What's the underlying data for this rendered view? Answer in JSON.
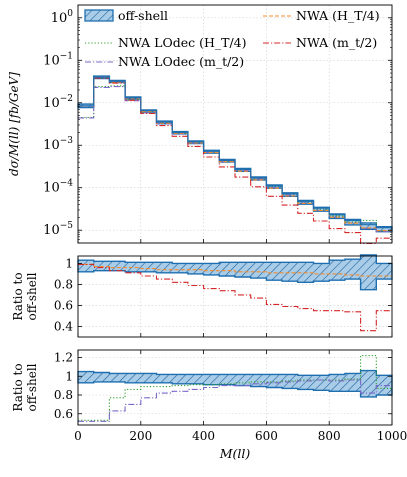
{
  "chart_data": [
    {
      "type": "step",
      "panel": "main",
      "ylabel": "dσ/M(ll) [fb/GeV]",
      "yscale": "log",
      "ylim": [
        5e-06,
        2
      ],
      "xlim": [
        0,
        1000
      ],
      "grid": true,
      "yticklabels": [
        "10^0",
        "10^-1",
        "10^-2",
        "10^-3",
        "10^-4",
        "10^-5"
      ],
      "legend": {
        "placement": "top",
        "entries": [
          {
            "key": "offshell",
            "label": "off-shell",
            "style": "hatched band"
          },
          {
            "key": "lodec_ht",
            "label": "NWA LOdec (H_T/4)",
            "style": "dotted"
          },
          {
            "key": "lodec_mt",
            "label": "NWA LOdec (m_t/2)",
            "style": "dash-dot"
          },
          {
            "key": "nwa_ht",
            "label": "NWA (H_T/4)",
            "style": "dashed"
          },
          {
            "key": "nwa_mt",
            "label": "NWA (m_t/2)",
            "style": "dash-dot"
          }
        ]
      },
      "bin_edges": [
        0,
        50,
        100,
        150,
        200,
        250,
        300,
        350,
        400,
        450,
        500,
        550,
        600,
        650,
        700,
        750,
        800,
        850,
        900,
        950,
        1000
      ],
      "series": [
        {
          "key": "offshell",
          "name": "off-shell",
          "color": "#1f6fb0",
          "values": [
            0.0085,
            0.04,
            0.032,
            0.013,
            0.0065,
            0.0035,
            0.002,
            0.0012,
            0.00072,
            0.00044,
            0.00027,
            0.00017,
            0.00011,
            7.2e-05,
            4.8e-05,
            3.3e-05,
            2.3e-05,
            1.7e-05,
            1.35e-05,
            1.15e-05
          ],
          "band_low": [
            0.0077,
            0.037,
            0.03,
            0.0122,
            0.006,
            0.0032,
            0.00185,
            0.0011,
            0.00065,
            0.0004,
            0.000243,
            0.000152,
            9.75e-05,
            6.3e-05,
            4.1e-05,
            2.8e-05,
            1.9e-05,
            1.33e-05,
            1.05e-05,
            9.2e-06
          ],
          "band_high": [
            0.0093,
            0.0425,
            0.0335,
            0.0137,
            0.0068,
            0.0037,
            0.0021,
            0.00126,
            0.00076,
            0.000462,
            0.000284,
            0.000179,
            0.000116,
            7.6e-05,
            5.04e-05,
            3.47e-05,
            2.42e-05,
            1.79e-05,
            1.49e-05,
            1.21e-05
          ]
        },
        {
          "key": "lodec_ht",
          "name": "NWA LOdec (H_T/4)",
          "color": "#2ca02c",
          "values": [
            0.0045,
            0.024,
            0.025,
            0.0115,
            0.006,
            0.0033,
            0.0019,
            0.00114,
            0.00068,
            0.00042,
            0.00026,
            0.000162,
            0.000104,
            6.9e-05,
            4.6e-05,
            3.1e-05,
            2.17e-05,
            1.55e-05,
            1.7e-05,
            9.8e-06
          ]
        },
        {
          "key": "lodec_mt",
          "name": "NWA LOdec (m_t/2)",
          "color": "#7b68c8",
          "values": [
            0.0044,
            0.023,
            0.024,
            0.0112,
            0.0058,
            0.0032,
            0.00185,
            0.00112,
            0.00067,
            0.00041,
            0.000255,
            0.00016,
            0.000101,
            6.7e-05,
            4.4e-05,
            2.95e-05,
            2.05e-05,
            1.48e-05,
            1.1e-05,
            9.2e-06
          ]
        },
        {
          "key": "nwa_ht",
          "name": "NWA (H_T/4)",
          "color": "#f08c30",
          "values": [
            0.0084,
            0.039,
            0.031,
            0.0125,
            0.0062,
            0.0033,
            0.0019,
            0.00113,
            0.00067,
            0.00041,
            0.000245,
            0.000153,
            9.75e-05,
            6.4e-05,
            4.25e-05,
            2.91e-05,
            2.02e-05,
            1.46e-05,
            1.14e-05,
            9.8e-06
          ]
        },
        {
          "key": "nwa_mt",
          "name": "NWA (m_t/2)",
          "color": "#d62728",
          "values": [
            0.0084,
            0.038,
            0.029,
            0.0115,
            0.0056,
            0.0029,
            0.00162,
            0.00094,
            0.00053,
            0.00031,
            0.000178,
            0.000105,
            6.3e-05,
            3.9e-05,
            2.5e-05,
            1.65e-05,
            1.09e-05,
            8.8e-06,
            4.9e-06,
            6.5e-06
          ]
        }
      ]
    },
    {
      "type": "step",
      "panel": "ratio-nwa",
      "ylabel_lines": [
        "Ratio to",
        "off-shell"
      ],
      "ylim": [
        0.3,
        1.07
      ],
      "yticks": [
        1,
        0.8,
        0.6,
        0.4
      ],
      "yticklabels": [
        "1",
        "0.8",
        "0.6",
        "0.4"
      ],
      "grid": true,
      "bin_edges": [
        0,
        50,
        100,
        150,
        200,
        250,
        300,
        350,
        400,
        450,
        500,
        550,
        600,
        650,
        700,
        750,
        800,
        850,
        900,
        950,
        1000
      ],
      "band": {
        "low": [
          0.92,
          0.93,
          0.93,
          0.92,
          0.92,
          0.91,
          0.91,
          0.9,
          0.89,
          0.88,
          0.87,
          0.86,
          0.84,
          0.83,
          0.82,
          0.83,
          0.84,
          0.85,
          0.75,
          0.85
        ],
        "high": [
          1.03,
          1.02,
          1.02,
          1.01,
          1.01,
          1.01,
          1.0,
          1.0,
          1.0,
          1.01,
          1.01,
          1.01,
          1.01,
          1.01,
          1.01,
          1.0,
          1.03,
          1.04,
          1.08,
          1.0
        ]
      },
      "series": [
        {
          "key": "nwa_ht",
          "values": [
            0.99,
            0.97,
            0.96,
            0.96,
            0.95,
            0.94,
            0.94,
            0.94,
            0.93,
            0.93,
            0.92,
            0.92,
            0.91,
            0.91,
            0.91,
            0.9,
            0.9,
            0.89,
            0.88,
            0.88
          ]
        },
        {
          "key": "nwa_mt",
          "values": [
            0.99,
            0.96,
            0.93,
            0.91,
            0.88,
            0.85,
            0.82,
            0.79,
            0.76,
            0.74,
            0.7,
            0.67,
            0.61,
            0.59,
            0.57,
            0.55,
            0.55,
            0.54,
            0.36,
            0.55
          ]
        }
      ]
    },
    {
      "type": "step",
      "panel": "ratio-lodec",
      "ylabel_lines": [
        "Ratio to",
        "off-shell"
      ],
      "xlabel": "M(ll)",
      "xlim": [
        0,
        1000
      ],
      "xticks": [
        0,
        200,
        400,
        600,
        800,
        1000
      ],
      "xticklabels": [
        "0",
        "200",
        "400",
        "600",
        "800",
        "1000"
      ],
      "ylim": [
        0.48,
        1.28
      ],
      "yticks": [
        1.2,
        1,
        0.8,
        0.6
      ],
      "yticklabels": [
        "1.2",
        "1",
        "0.8",
        "0.6"
      ],
      "grid": true,
      "bin_edges": [
        0,
        50,
        100,
        150,
        200,
        250,
        300,
        350,
        400,
        450,
        500,
        550,
        600,
        650,
        700,
        750,
        800,
        850,
        900,
        950,
        1000
      ],
      "band": {
        "low": [
          0.93,
          0.94,
          0.94,
          0.93,
          0.93,
          0.93,
          0.92,
          0.92,
          0.91,
          0.91,
          0.9,
          0.89,
          0.88,
          0.87,
          0.86,
          0.85,
          0.84,
          0.84,
          0.78,
          0.8
        ],
        "high": [
          1.05,
          1.04,
          1.03,
          1.03,
          1.03,
          1.02,
          1.02,
          1.02,
          1.02,
          1.02,
          1.02,
          1.02,
          1.02,
          1.02,
          1.01,
          1.01,
          1.02,
          1.03,
          1.06,
          1.01
        ]
      },
      "series": [
        {
          "key": "lodec_ht",
          "values": [
            0.53,
            0.53,
            0.77,
            0.86,
            0.89,
            0.89,
            0.9,
            0.91,
            0.91,
            0.92,
            0.93,
            0.94,
            0.94,
            0.95,
            0.96,
            0.96,
            0.96,
            0.97,
            1.22,
            0.87
          ]
        },
        {
          "key": "lodec_mt",
          "values": [
            0.52,
            0.52,
            0.63,
            0.7,
            0.77,
            0.82,
            0.84,
            0.86,
            0.88,
            0.9,
            0.9,
            0.92,
            0.93,
            0.94,
            0.95,
            0.96,
            0.95,
            0.96,
            0.82,
            0.9
          ]
        }
      ]
    }
  ]
}
